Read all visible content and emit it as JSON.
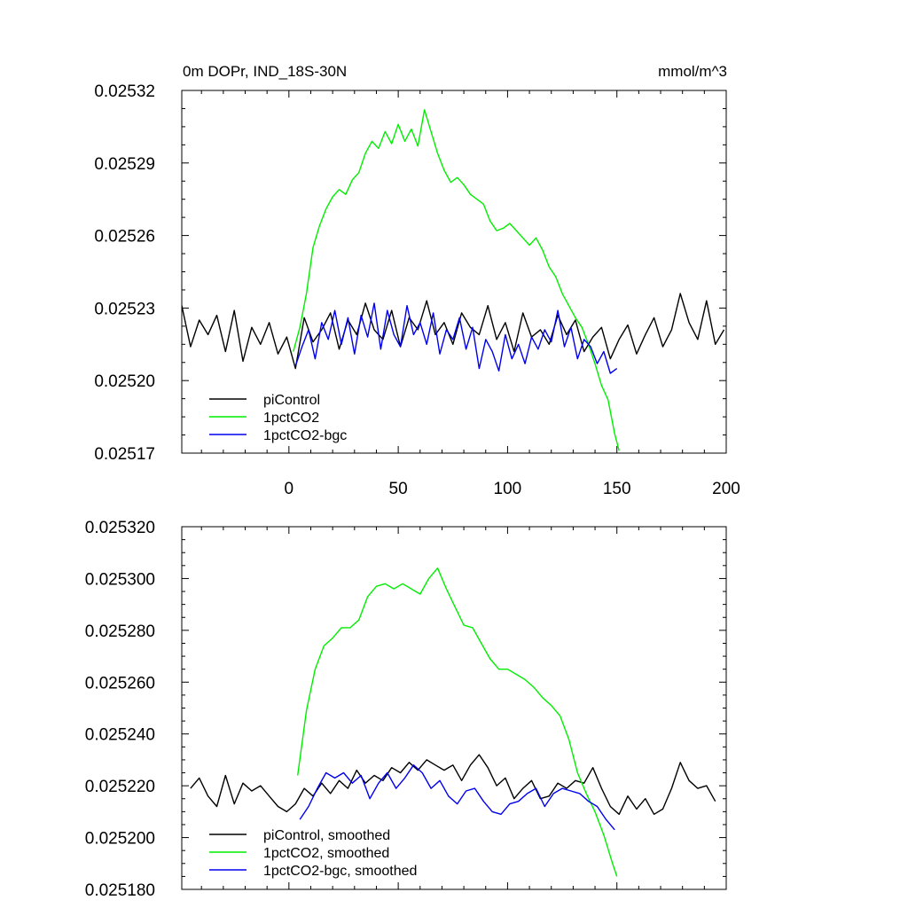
{
  "chart_data": [
    {
      "type": "line",
      "title": "0m DOPr, IND_18S-30N",
      "units": "mmol/m^3",
      "xlim": [
        -49,
        200
      ],
      "ylim": [
        0.02517,
        0.02532
      ],
      "x_ticks": [
        0,
        50,
        100,
        150,
        200
      ],
      "x_tick_labels": [
        "0",
        "50",
        "100",
        "150",
        "200"
      ],
      "y_ticks": [
        0.02517,
        0.0252,
        0.02523,
        0.02526,
        0.02529,
        0.02532
      ],
      "y_tick_labels": [
        "0.02517",
        "0.02520",
        "0.02523",
        "0.02526",
        "0.02529",
        "0.02532"
      ],
      "legend_position": "bottom-left",
      "series": [
        {
          "name": "piControl",
          "color": "#000000",
          "x": [
            -49,
            -45,
            -41,
            -37,
            -33,
            -29,
            -25,
            -21,
            -17,
            -13,
            -9,
            -5,
            -1,
            3,
            7,
            11,
            15,
            19,
            23,
            27,
            31,
            35,
            39,
            43,
            47,
            51,
            55,
            59,
            63,
            67,
            71,
            75,
            79,
            83,
            87,
            91,
            95,
            99,
            103,
            107,
            111,
            115,
            119,
            123,
            127,
            131,
            135,
            139,
            143,
            147,
            151,
            155,
            159,
            163,
            167,
            171,
            175,
            179,
            183,
            187,
            191,
            195,
            199
          ],
          "y": [
            0.025231,
            0.025214,
            0.025225,
            0.025219,
            0.025227,
            0.025212,
            0.025229,
            0.025208,
            0.025222,
            0.025215,
            0.025224,
            0.025211,
            0.025218,
            0.025205,
            0.025226,
            0.025216,
            0.025221,
            0.025228,
            0.025213,
            0.025225,
            0.025219,
            0.025232,
            0.025221,
            0.025217,
            0.025229,
            0.025214,
            0.025226,
            0.025221,
            0.025233,
            0.025219,
            0.025224,
            0.025215,
            0.025228,
            0.025222,
            0.025219,
            0.025231,
            0.025217,
            0.025224,
            0.025212,
            0.025228,
            0.025218,
            0.025221,
            0.025215,
            0.025227,
            0.025219,
            0.025225,
            0.025212,
            0.025218,
            0.025222,
            0.025209,
            0.025217,
            0.025223,
            0.025211,
            0.025219,
            0.025226,
            0.025214,
            0.025221,
            0.025236,
            0.025224,
            0.025217,
            0.025233,
            0.025215,
            0.025221
          ]
        },
        {
          "name": "1pctCO2",
          "color": "#00ee00",
          "x": [
            2,
            5,
            8,
            11,
            14,
            17,
            20,
            23,
            26,
            29,
            32,
            35,
            38,
            41,
            44,
            47,
            50,
            53,
            56,
            59,
            62,
            65,
            68,
            71,
            74,
            77,
            80,
            83,
            86,
            89,
            92,
            95,
            98,
            101,
            104,
            107,
            110,
            113,
            116,
            119,
            122,
            125,
            128,
            131,
            134,
            137,
            140,
            143,
            146,
            149,
            151
          ],
          "y": [
            0.025212,
            0.025222,
            0.025236,
            0.025255,
            0.025264,
            0.025271,
            0.025276,
            0.025279,
            0.025277,
            0.025283,
            0.025286,
            0.025294,
            0.025299,
            0.025296,
            0.025303,
            0.025298,
            0.025306,
            0.025299,
            0.025304,
            0.025297,
            0.025312,
            0.025303,
            0.025294,
            0.025287,
            0.025282,
            0.025284,
            0.025281,
            0.025277,
            0.025275,
            0.025273,
            0.025266,
            0.025262,
            0.025263,
            0.025265,
            0.025262,
            0.025259,
            0.025256,
            0.025259,
            0.025254,
            0.025247,
            0.025243,
            0.025236,
            0.025231,
            0.025226,
            0.025222,
            0.025215,
            0.025207,
            0.025198,
            0.025192,
            0.025178,
            0.025171
          ]
        },
        {
          "name": "1pctCO2-bgc",
          "color": "#0000ee",
          "x": [
            3,
            6,
            9,
            12,
            15,
            18,
            21,
            24,
            27,
            30,
            33,
            36,
            39,
            42,
            45,
            48,
            51,
            54,
            57,
            60,
            63,
            66,
            69,
            72,
            75,
            78,
            81,
            84,
            87,
            90,
            93,
            96,
            99,
            102,
            105,
            108,
            111,
            114,
            117,
            120,
            123,
            126,
            129,
            132,
            135,
            138,
            141,
            144,
            147,
            150
          ],
          "y": [
            0.025206,
            0.025214,
            0.025221,
            0.025209,
            0.025224,
            0.025217,
            0.025229,
            0.025215,
            0.025226,
            0.025211,
            0.025227,
            0.025218,
            0.025232,
            0.025213,
            0.025229,
            0.025219,
            0.025214,
            0.025231,
            0.025219,
            0.025224,
            0.025215,
            0.025228,
            0.025211,
            0.025221,
            0.025217,
            0.025226,
            0.025213,
            0.025222,
            0.025205,
            0.025217,
            0.025212,
            0.025204,
            0.025219,
            0.025209,
            0.025215,
            0.025207,
            0.025218,
            0.025213,
            0.025221,
            0.025216,
            0.025229,
            0.025214,
            0.025222,
            0.025209,
            0.025217,
            0.025214,
            0.025207,
            0.025212,
            0.025203,
            0.025205
          ]
        }
      ]
    },
    {
      "type": "line",
      "title": "",
      "xlim": [
        -49,
        200
      ],
      "ylim": [
        0.02518,
        0.02532
      ],
      "x_ticks": [
        0,
        50,
        100,
        150,
        200
      ],
      "y_ticks": [
        0.02518,
        0.0252,
        0.02522,
        0.02524,
        0.02526,
        0.02528,
        0.0253,
        0.02532
      ],
      "y_tick_labels": [
        "0.025180",
        "0.025200",
        "0.025220",
        "0.025240",
        "0.025260",
        "0.025280",
        "0.025300",
        "0.025320"
      ],
      "legend_position": "bottom-left",
      "series": [
        {
          "name": "piControl, smoothed",
          "color": "#000000",
          "x": [
            -45,
            -41,
            -37,
            -33,
            -29,
            -25,
            -21,
            -17,
            -13,
            -9,
            -5,
            -1,
            3,
            7,
            11,
            15,
            19,
            23,
            27,
            31,
            35,
            39,
            43,
            47,
            51,
            55,
            59,
            63,
            67,
            71,
            75,
            79,
            83,
            87,
            91,
            95,
            99,
            103,
            107,
            111,
            115,
            119,
            123,
            127,
            131,
            135,
            139,
            143,
            147,
            151,
            155,
            159,
            163,
            167,
            171,
            175,
            179,
            183,
            187,
            191,
            195
          ],
          "y": [
            0.025219,
            0.025223,
            0.025216,
            0.025212,
            0.025224,
            0.025213,
            0.025221,
            0.025218,
            0.02522,
            0.025216,
            0.025212,
            0.02521,
            0.025213,
            0.025219,
            0.025216,
            0.025221,
            0.025217,
            0.025222,
            0.025219,
            0.025226,
            0.025221,
            0.025224,
            0.025222,
            0.025227,
            0.025225,
            0.025229,
            0.025226,
            0.02523,
            0.025228,
            0.025226,
            0.025228,
            0.025222,
            0.025228,
            0.025232,
            0.025227,
            0.02522,
            0.025223,
            0.025215,
            0.025219,
            0.025222,
            0.025215,
            0.025216,
            0.025221,
            0.025219,
            0.025222,
            0.025221,
            0.025227,
            0.025219,
            0.025212,
            0.025209,
            0.025216,
            0.025211,
            0.025215,
            0.025209,
            0.025211,
            0.025219,
            0.025229,
            0.025222,
            0.025219,
            0.02522,
            0.025214
          ]
        },
        {
          "name": "1pctCO2, smoothed",
          "color": "#00ee00",
          "x": [
            4,
            8,
            12,
            16,
            20,
            24,
            28,
            32,
            36,
            40,
            44,
            48,
            52,
            56,
            60,
            64,
            68,
            72,
            76,
            80,
            84,
            88,
            92,
            96,
            100,
            104,
            108,
            112,
            116,
            120,
            124,
            128,
            132,
            136,
            140,
            144,
            148,
            150
          ],
          "y": [
            0.025224,
            0.025249,
            0.025265,
            0.025274,
            0.025277,
            0.025281,
            0.025281,
            0.025284,
            0.025293,
            0.025297,
            0.025298,
            0.025296,
            0.025298,
            0.025296,
            0.025294,
            0.0253,
            0.025304,
            0.025296,
            0.025289,
            0.025282,
            0.025281,
            0.025275,
            0.025269,
            0.025265,
            0.025265,
            0.025263,
            0.025261,
            0.025258,
            0.025254,
            0.025251,
            0.025247,
            0.025238,
            0.025225,
            0.025217,
            0.02521,
            0.025201,
            0.02519,
            0.025185
          ]
        },
        {
          "name": "1pctCO2-bgc, smoothed",
          "color": "#0000ee",
          "x": [
            5,
            9,
            13,
            17,
            21,
            25,
            29,
            33,
            37,
            41,
            45,
            49,
            53,
            57,
            61,
            65,
            69,
            73,
            77,
            81,
            85,
            89,
            93,
            97,
            101,
            105,
            109,
            113,
            117,
            121,
            125,
            129,
            133,
            137,
            141,
            145,
            149
          ],
          "y": [
            0.025207,
            0.025212,
            0.025219,
            0.025225,
            0.025223,
            0.025225,
            0.025221,
            0.025224,
            0.025215,
            0.025221,
            0.025225,
            0.025219,
            0.025223,
            0.025228,
            0.025225,
            0.025219,
            0.025222,
            0.025216,
            0.025213,
            0.025218,
            0.025219,
            0.025214,
            0.02521,
            0.025209,
            0.025213,
            0.025214,
            0.025217,
            0.025219,
            0.025212,
            0.025217,
            0.025219,
            0.025218,
            0.025217,
            0.025214,
            0.025212,
            0.025207,
            0.025203
          ]
        }
      ]
    }
  ]
}
